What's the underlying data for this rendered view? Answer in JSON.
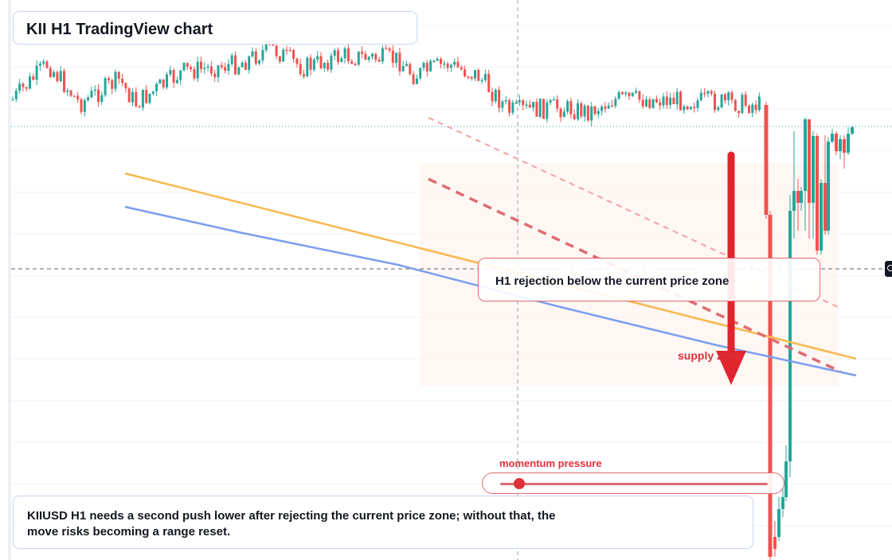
{
  "header": {
    "title": "KII H1 TradingView chart"
  },
  "callout": {
    "text": "H1 rejection below the current price zone"
  },
  "supply_label": "supply zone",
  "momentum": {
    "label": "momentum pressure",
    "level": 0.07
  },
  "note": {
    "text": "KIIUSD H1 needs a second push lower after rejecting the current price zone; without that, the move risks becoming a range reset."
  },
  "colors": {
    "up": "#26a69a",
    "down": "#ef5350",
    "accent": "#e0303a",
    "ema_fast": "#f8b84e",
    "ema_slow": "#7b9ef0"
  },
  "chart_data": {
    "type": "candlestick",
    "title": "KII H1 TradingView chart",
    "symbol": "KIIUSD",
    "timeframe": "H1",
    "y_scale": "price (unlabelled)",
    "grid": true,
    "overlays": [
      "orange moving average",
      "blue moving average",
      "dashed red descending trendlines",
      "shaded supply zone",
      "downward red arrow"
    ],
    "annotations": [
      "H1 rejection below the current price zone",
      "supply zone",
      "momentum pressure"
    ]
  }
}
